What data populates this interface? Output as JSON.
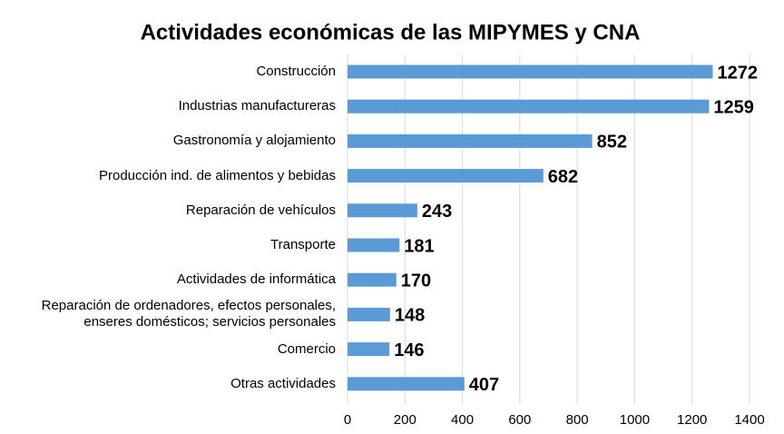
{
  "chart_data": {
    "type": "barh",
    "title": "Actividades económicas de las MIPYMES y CNA",
    "categories": [
      "Construcción",
      "Industrias manufactureras",
      "Gastronomía y alojamiento",
      "Producción ind. de alimentos y bebidas",
      "Reparación de vehículos",
      "Transporte",
      "Actividades de informática",
      "Reparación de ordenadores, efectos personales,\nenseres domésticos; servicios personales",
      "Comercio",
      "Otras actividades"
    ],
    "values": [
      1272,
      1259,
      852,
      682,
      243,
      181,
      170,
      148,
      146,
      407
    ],
    "color": "#5b9bd5",
    "xlim": [
      0,
      1400
    ],
    "xticks": [
      0,
      200,
      400,
      600,
      800,
      1000,
      1200,
      1400
    ],
    "grid": true
  }
}
